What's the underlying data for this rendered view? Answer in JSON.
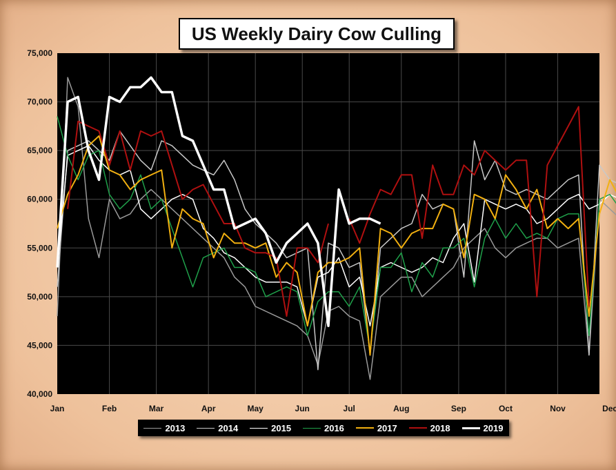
{
  "chart_data": {
    "type": "line",
    "title": "US Weekly Dairy Cow Culling",
    "xlabel": "",
    "ylabel": "",
    "ylim": [
      40000,
      75000
    ],
    "yticks": [
      40000,
      45000,
      50000,
      55000,
      60000,
      65000,
      70000,
      75000
    ],
    "ytick_labels": [
      "40,000",
      "45,000",
      "50,000",
      "55,000",
      "60,000",
      "65,000",
      "70,000",
      "75,000"
    ],
    "xlim": [
      1,
      53
    ],
    "month_labels": [
      "Jan",
      "Feb",
      "Mar",
      "Apr",
      "May",
      "Jun",
      "Jul",
      "Aug",
      "Sep",
      "Oct",
      "Nov",
      "Dec"
    ],
    "month_weeks": [
      1,
      6,
      10.5,
      15.5,
      20,
      24.5,
      29,
      34,
      39.5,
      44,
      49,
      54
    ],
    "grid": true,
    "legend_position": "bottom",
    "series": [
      {
        "name": "2013",
        "color": "#9a9a9a",
        "width": 1.5,
        "values": [
          48000,
          72500,
          69500,
          58000,
          54000,
          60000,
          58000,
          58500,
          60000,
          61000,
          60000,
          59000,
          58000,
          57000,
          56000,
          55000,
          54000,
          52000,
          51000,
          49000,
          48500,
          48000,
          47500,
          47000,
          46000,
          43000,
          48500,
          49000,
          48000,
          47500,
          41500,
          50000,
          51000,
          52000,
          52000,
          50000,
          51000,
          52000,
          53000,
          55000,
          56000,
          57000,
          55000,
          54000,
          55000,
          55500,
          56000,
          56000,
          55000,
          55500,
          56000,
          44000,
          60000,
          59000,
          58000,
          42500,
          43500
        ]
      },
      {
        "name": "2014",
        "color": "#c8c8c8",
        "width": 1.5,
        "values": [
          51000,
          65000,
          65500,
          66000,
          65000,
          64000,
          67000,
          65500,
          64000,
          63000,
          66000,
          65500,
          64500,
          63500,
          63000,
          62500,
          64000,
          62000,
          59000,
          57500,
          56500,
          55500,
          54000,
          54500,
          55000,
          42500,
          55500,
          55000,
          53000,
          53500,
          44000,
          55000,
          56000,
          57000,
          57500,
          60500,
          59000,
          59500,
          59000,
          52000,
          66000,
          62000,
          64000,
          61000,
          60500,
          61000,
          60500,
          60000,
          61000,
          62000,
          62500,
          44000,
          63500,
          62000,
          61500,
          48000,
          51000
        ]
      },
      {
        "name": "2015",
        "color": "#ffffff",
        "width": 1.5,
        "values": [
          53000,
          64500,
          65000,
          65500,
          64000,
          63000,
          62500,
          63000,
          59000,
          58000,
          59000,
          60000,
          60500,
          60000,
          57000,
          56000,
          54500,
          54000,
          53000,
          52000,
          51500,
          51500,
          51500,
          51000,
          47000,
          52000,
          52500,
          54000,
          51000,
          52000,
          47000,
          53000,
          53500,
          53000,
          52500,
          53000,
          54000,
          53500,
          56000,
          57500,
          51500,
          60000,
          59500,
          59000,
          59500,
          59000,
          57500,
          58000,
          59000,
          60000,
          60500,
          59000,
          59500,
          60500,
          60000,
          48000,
          42500
        ]
      },
      {
        "name": "2016",
        "color": "#1fa04a",
        "width": 1.5,
        "values": [
          68500,
          64500,
          62000,
          64500,
          65000,
          60500,
          59000,
          60000,
          62500,
          59000,
          60000,
          57000,
          54000,
          51000,
          54000,
          54500,
          55000,
          53000,
          53000,
          52500,
          50000,
          50500,
          51000,
          50500,
          46000,
          49500,
          50500,
          50500,
          49000,
          51000,
          44500,
          53000,
          53000,
          54500,
          50500,
          53500,
          52000,
          55000,
          55000,
          56000,
          51000,
          56000,
          58000,
          56000,
          57500,
          56000,
          56500,
          56000,
          58000,
          58500,
          58500,
          46000,
          60000,
          60500,
          59000,
          53500,
          50000
        ]
      },
      {
        "name": "2017",
        "color": "#f2b010",
        "width": 2,
        "values": [
          57000,
          60500,
          62500,
          65500,
          66500,
          63000,
          62500,
          61000,
          62000,
          62500,
          63000,
          55000,
          59000,
          58000,
          57500,
          54000,
          56500,
          55500,
          55500,
          55000,
          55500,
          52000,
          53500,
          52500,
          47000,
          52500,
          53500,
          53500,
          54000,
          55000,
          44000,
          57000,
          56500,
          55000,
          56500,
          57000,
          57000,
          59500,
          59000,
          54000,
          60500,
          60000,
          58000,
          62500,
          61000,
          59000,
          61000,
          57000,
          58000,
          57000,
          58000,
          48000,
          58500,
          62000,
          60000,
          61500,
          44000
        ]
      },
      {
        "name": "2018",
        "color": "#b01010",
        "width": 2,
        "values": [
          null,
          59000,
          68000,
          67500,
          67000,
          63500,
          67000,
          63000,
          67000,
          66500,
          67000,
          63500,
          60000,
          61000,
          61500,
          59500,
          57500,
          57500,
          55000,
          54500,
          54500,
          54000,
          48000,
          55000,
          55000,
          53500,
          57500,
          null,
          58000,
          55500,
          58500,
          61000,
          60500,
          62500,
          62500,
          56000,
          63500,
          60500,
          60500,
          63500,
          62500,
          65000,
          64000,
          63000,
          64000,
          64000,
          50000,
          63500,
          65500,
          67500,
          69500,
          49000
        ]
      },
      {
        "name": "2019",
        "color": "#ffffff",
        "width": 3.5,
        "values": [
          53000,
          70000,
          70500,
          65000,
          62000,
          70500,
          70000,
          71500,
          71500,
          72500,
          71000,
          71000,
          66500,
          66000,
          63500,
          61000,
          61000,
          57000,
          57500,
          58000,
          56500,
          53500,
          55500,
          56500,
          57500,
          55500,
          47000,
          61000,
          57500,
          58000,
          58000,
          57500
        ]
      }
    ]
  }
}
